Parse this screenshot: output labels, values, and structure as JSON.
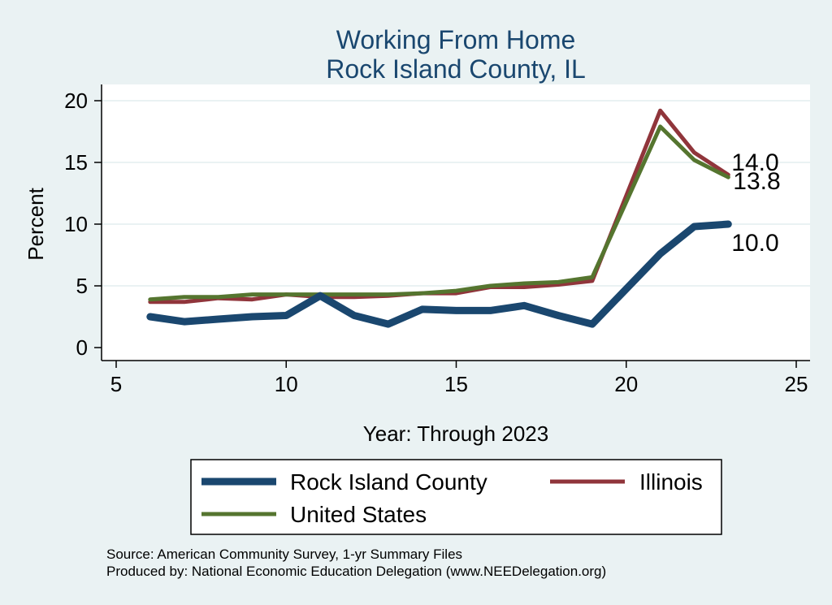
{
  "chart_data": {
    "type": "line",
    "title": "Working From Home",
    "subtitle": "Rock Island County, IL",
    "xlabel": "Year: Through 2023",
    "ylabel": "Percent",
    "xlim": [
      5,
      25
    ],
    "ylim": [
      0,
      20
    ],
    "xticks": [
      5,
      10,
      15,
      20,
      25
    ],
    "yticks": [
      0,
      5,
      10,
      15,
      20
    ],
    "grid": true,
    "x": [
      6,
      7,
      8,
      9,
      10,
      11,
      12,
      13,
      14,
      15,
      16,
      17,
      18,
      19,
      21,
      22,
      23
    ],
    "series": [
      {
        "name": "Rock Island County",
        "color": "#1a476f",
        "values": [
          2.5,
          2.1,
          2.3,
          2.5,
          2.6,
          4.2,
          2.6,
          1.9,
          3.1,
          3.0,
          3.0,
          3.4,
          2.6,
          1.9,
          7.6,
          9.8,
          10.0
        ],
        "end_label": "10.0"
      },
      {
        "name": "Illinois",
        "color": "#90353b",
        "values": [
          3.7,
          3.7,
          4.0,
          3.9,
          4.3,
          4.1,
          4.1,
          4.2,
          4.4,
          4.4,
          4.9,
          4.9,
          5.1,
          5.4,
          19.2,
          15.8,
          14.0
        ],
        "end_label": "14.0"
      },
      {
        "name": "United States",
        "color": "#55752f",
        "values": [
          3.9,
          4.1,
          4.1,
          4.3,
          4.3,
          4.3,
          4.3,
          4.3,
          4.4,
          4.6,
          5.0,
          5.2,
          5.3,
          5.7,
          17.9,
          15.2,
          13.8
        ],
        "end_label": "13.8"
      }
    ],
    "legend": {
      "position": "bottom",
      "items": [
        "Rock Island County",
        "Illinois",
        "United States"
      ]
    },
    "notes": [
      "Source: American Community Survey, 1-yr Summary Files",
      "Produced by: National Economic Education Delegation (www.NEEDelegation.org)"
    ]
  }
}
